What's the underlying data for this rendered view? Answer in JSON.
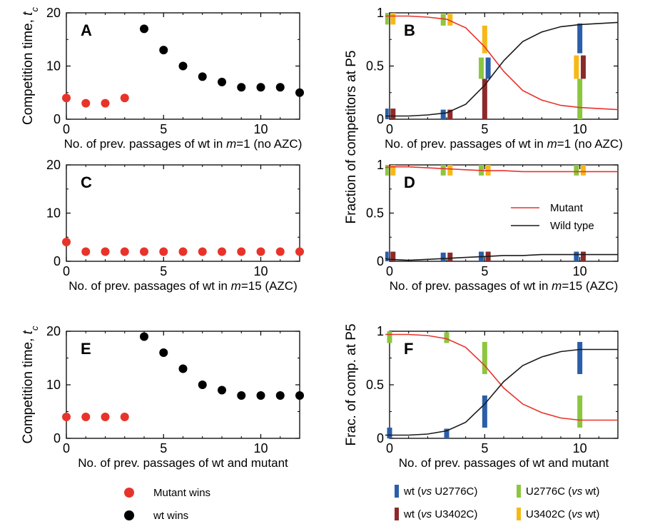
{
  "legends": {
    "mutant_wins": "Mutant  wins",
    "wt_wins": "wt wins",
    "bar_wt_vs_u2776c_pre": "wt (",
    "bar_wt_vs_u2776c_vs": "vs",
    "bar_wt_vs_u2776c_post": " U2776C)",
    "bar_wt_vs_u3402c_pre": "wt (",
    "bar_wt_vs_u3402c_vs": "vs",
    "bar_wt_vs_u3402c_post": " U3402C)",
    "bar_u2776c_vs_wt_pre": "U2776C (",
    "bar_u2776c_vs_wt_vs": "vs",
    "bar_u2776c_vs_wt_post": " wt)",
    "bar_u3402c_vs_wt_pre": "U3402C (",
    "bar_u3402c_vs_wt_vs": "vs",
    "bar_u3402c_vs_wt_post": " wt)"
  },
  "colors": {
    "mutant": "#e8332b",
    "wildtype": "#1a1a1a",
    "wt_vs_u2776c": "#2a5ea8",
    "wt_vs_u3402c": "#8c2a2a",
    "u2776c_vs_wt": "#8cc63f",
    "u3402c_vs_wt": "#f7b817"
  },
  "chart_data": [
    {
      "id": "A",
      "type": "scatter",
      "panel_label": "A",
      "xlabel_parts": [
        "No. of  prev. passages of wt in ",
        "m",
        "=1 (no AZC)"
      ],
      "ylabel_parts": [
        "Competition time, ",
        "t",
        "c"
      ],
      "xlim": [
        0,
        12
      ],
      "ylim": [
        0,
        20
      ],
      "xticks": [
        0,
        5,
        10
      ],
      "yticks": [
        0,
        10,
        20
      ],
      "series": [
        {
          "name": "Mutant  wins",
          "color": "#e8332b",
          "x": [
            0,
            1,
            2,
            3
          ],
          "y": [
            4,
            3,
            3,
            4
          ]
        },
        {
          "name": "wt wins",
          "color": "#000000",
          "x": [
            4,
            5,
            6,
            7,
            8,
            9,
            10,
            11,
            12
          ],
          "y": [
            17,
            13,
            10,
            8,
            7,
            6,
            6,
            6,
            5
          ]
        }
      ]
    },
    {
      "id": "B",
      "type": "line",
      "panel_label": "B",
      "xlabel_parts": [
        "No. of  prev. passages of wt in ",
        "m",
        "=1 (no AZC)"
      ],
      "xlim": [
        0,
        12
      ],
      "ylim": [
        0,
        1
      ],
      "xticks": [
        0,
        5,
        10
      ],
      "yticks": [
        0,
        0.5,
        1
      ],
      "ytick_labels": [
        "0",
        "0.5",
        "1"
      ],
      "series": [
        {
          "key": "mutant",
          "color": "#e8332b",
          "x": [
            -0.3,
            0,
            1,
            2,
            3,
            4,
            5,
            6,
            7,
            8,
            9,
            10,
            11,
            12
          ],
          "y": [
            0.97,
            0.97,
            0.97,
            0.96,
            0.94,
            0.86,
            0.68,
            0.45,
            0.27,
            0.18,
            0.13,
            0.11,
            0.1,
            0.09
          ]
        },
        {
          "key": "wildtype",
          "color": "#1a1a1a",
          "x": [
            -0.3,
            0,
            1,
            2,
            3,
            4,
            5,
            6,
            7,
            8,
            9,
            10,
            11,
            12
          ],
          "y": [
            0.03,
            0.03,
            0.03,
            0.04,
            0.06,
            0.14,
            0.32,
            0.55,
            0.73,
            0.82,
            0.87,
            0.89,
            0.9,
            0.91
          ]
        }
      ],
      "bars": [
        {
          "x": 0,
          "y0": 0.0,
          "y1": 0.1,
          "color": "#2a5ea8",
          "dx": -0.18
        },
        {
          "x": 0,
          "y0": 0.0,
          "y1": 0.1,
          "color": "#8c2a2a",
          "dx": 0.18
        },
        {
          "x": 0,
          "y0": 0.89,
          "y1": 1.0,
          "color": "#8cc63f",
          "dx": -0.18
        },
        {
          "x": 0,
          "y0": 0.89,
          "y1": 1.0,
          "color": "#f7b817",
          "dx": 0.18
        },
        {
          "x": 3,
          "y0": 0.0,
          "y1": 0.09,
          "color": "#2a5ea8",
          "dx": -0.18
        },
        {
          "x": 3,
          "y0": 0.0,
          "y1": 0.09,
          "color": "#8c2a2a",
          "dx": 0.18
        },
        {
          "x": 3,
          "y0": 0.88,
          "y1": 0.99,
          "color": "#8cc63f",
          "dx": -0.18
        },
        {
          "x": 3,
          "y0": 0.88,
          "y1": 0.99,
          "color": "#f7b817",
          "dx": 0.18
        },
        {
          "x": 5,
          "y0": 0.0,
          "y1": 0.38,
          "color": "#8c2a2a",
          "dx": 0.0
        },
        {
          "x": 5,
          "y0": 0.62,
          "y1": 0.88,
          "color": "#f7b817",
          "dx": 0.0
        },
        {
          "x": 5,
          "y0": 0.38,
          "y1": 0.58,
          "color": "#2a5ea8",
          "dx": 0.18
        },
        {
          "x": 5,
          "y0": 0.38,
          "y1": 0.58,
          "color": "#8cc63f",
          "dx": -0.18
        },
        {
          "x": 10,
          "y0": 0.0,
          "y1": 0.38,
          "color": "#8cc63f",
          "dx": 0.0
        },
        {
          "x": 10,
          "y0": 0.62,
          "y1": 0.9,
          "color": "#2a5ea8",
          "dx": 0.0
        },
        {
          "x": 10,
          "y0": 0.38,
          "y1": 0.6,
          "color": "#f7b817",
          "dx": -0.18
        },
        {
          "x": 10,
          "y0": 0.38,
          "y1": 0.6,
          "color": "#8c2a2a",
          "dx": 0.18
        }
      ]
    },
    {
      "id": "C",
      "type": "scatter",
      "panel_label": "C",
      "xlabel_parts": [
        "No. of prev. passages of wt in ",
        "m",
        "=15 (AZC)"
      ],
      "xlim": [
        0,
        12
      ],
      "ylim": [
        0,
        20
      ],
      "xticks": [
        0,
        5,
        10
      ],
      "yticks": [
        0,
        10,
        20
      ],
      "series": [
        {
          "name": "Mutant  wins",
          "color": "#e8332b",
          "x": [
            0,
            1,
            2,
            3,
            4,
            5,
            6,
            7,
            8,
            9,
            10,
            11,
            12
          ],
          "y": [
            4,
            2,
            2,
            2,
            2,
            2,
            2,
            2,
            2,
            2,
            2,
            2,
            2
          ]
        }
      ]
    },
    {
      "id": "D",
      "type": "line",
      "panel_label": "D",
      "xlabel_parts": [
        "No. of prev. passages of wt in ",
        "m",
        "=15 (AZC)"
      ],
      "xlim": [
        0,
        12
      ],
      "ylim": [
        0,
        1
      ],
      "xticks": [
        0,
        5,
        10
      ],
      "yticks": [
        0,
        0.5,
        1
      ],
      "ytick_labels": [
        "0",
        "0.5",
        "1"
      ],
      "legend": {
        "mutant": "Mutant",
        "wildtype": "Wild type"
      },
      "series": [
        {
          "key": "mutant",
          "color": "#e8332b",
          "x": [
            -0.3,
            0,
            1,
            2,
            3,
            4,
            5,
            6,
            7,
            8,
            9,
            10,
            11,
            12
          ],
          "y": [
            0.97,
            0.98,
            0.98,
            0.97,
            0.96,
            0.95,
            0.94,
            0.94,
            0.93,
            0.93,
            0.93,
            0.93,
            0.93,
            0.93
          ]
        },
        {
          "key": "wildtype",
          "color": "#1a1a1a",
          "x": [
            -0.3,
            0,
            1,
            2,
            3,
            4,
            5,
            6,
            7,
            8,
            9,
            10,
            11,
            12
          ],
          "y": [
            0.03,
            0.02,
            0.01,
            0.02,
            0.03,
            0.04,
            0.05,
            0.06,
            0.06,
            0.07,
            0.07,
            0.07,
            0.07,
            0.07
          ]
        }
      ],
      "bars": [
        {
          "x": 0,
          "y0": 0.0,
          "y1": 0.1,
          "color": "#2a5ea8",
          "dx": -0.18
        },
        {
          "x": 0,
          "y0": 0.0,
          "y1": 0.1,
          "color": "#8c2a2a",
          "dx": 0.18
        },
        {
          "x": 0,
          "y0": 0.89,
          "y1": 1.0,
          "color": "#8cc63f",
          "dx": -0.18
        },
        {
          "x": 0,
          "y0": 0.89,
          "y1": 1.0,
          "color": "#f7b817",
          "dx": 0.18
        },
        {
          "x": 3,
          "y0": 0.0,
          "y1": 0.09,
          "color": "#2a5ea8",
          "dx": -0.18
        },
        {
          "x": 3,
          "y0": 0.0,
          "y1": 0.09,
          "color": "#8c2a2a",
          "dx": 0.18
        },
        {
          "x": 3,
          "y0": 0.89,
          "y1": 1.0,
          "color": "#8cc63f",
          "dx": -0.18
        },
        {
          "x": 3,
          "y0": 0.89,
          "y1": 1.0,
          "color": "#f7b817",
          "dx": 0.18
        },
        {
          "x": 5,
          "y0": 0.0,
          "y1": 0.1,
          "color": "#2a5ea8",
          "dx": -0.18
        },
        {
          "x": 5,
          "y0": 0.0,
          "y1": 0.1,
          "color": "#8c2a2a",
          "dx": 0.18
        },
        {
          "x": 5,
          "y0": 0.89,
          "y1": 1.0,
          "color": "#8cc63f",
          "dx": -0.18
        },
        {
          "x": 5,
          "y0": 0.89,
          "y1": 1.0,
          "color": "#f7b817",
          "dx": 0.18
        },
        {
          "x": 10,
          "y0": 0.0,
          "y1": 0.1,
          "color": "#2a5ea8",
          "dx": -0.18
        },
        {
          "x": 10,
          "y0": 0.0,
          "y1": 0.1,
          "color": "#8c2a2a",
          "dx": 0.18
        },
        {
          "x": 10,
          "y0": 0.89,
          "y1": 1.0,
          "color": "#8cc63f",
          "dx": -0.18
        },
        {
          "x": 10,
          "y0": 0.89,
          "y1": 1.0,
          "color": "#f7b817",
          "dx": 0.18
        }
      ]
    },
    {
      "id": "E",
      "type": "scatter",
      "panel_label": "E",
      "xlabel_parts": [
        "No. of prev. passages of wt and mutant"
      ],
      "ylabel_parts": [
        "Competition time, ",
        "t",
        "c"
      ],
      "xlim": [
        0,
        12
      ],
      "ylim": [
        0,
        20
      ],
      "xticks": [
        0,
        5,
        10
      ],
      "yticks": [
        0,
        10,
        20
      ],
      "series": [
        {
          "name": "Mutant  wins",
          "color": "#e8332b",
          "x": [
            0,
            1,
            2,
            3
          ],
          "y": [
            4,
            4,
            4,
            4
          ]
        },
        {
          "name": "wt wins",
          "color": "#000000",
          "x": [
            4,
            5,
            6,
            7,
            8,
            9,
            10,
            11,
            12
          ],
          "y": [
            19,
            16,
            13,
            10,
            9,
            8,
            8,
            8,
            8
          ]
        }
      ]
    },
    {
      "id": "F",
      "type": "line",
      "panel_label": "F",
      "xlabel_parts": [
        "No. of prev. passages of wt and mutant"
      ],
      "ylabel_parts": [
        "Frac. of comp. at P5"
      ],
      "xlim": [
        0,
        12
      ],
      "ylim": [
        0,
        1
      ],
      "xticks": [
        0,
        5,
        10
      ],
      "yticks": [
        0,
        0.5,
        1
      ],
      "ytick_labels": [
        "0",
        "0.5",
        "1"
      ],
      "series": [
        {
          "key": "mutant",
          "color": "#e8332b",
          "x": [
            -0.3,
            0,
            1,
            2,
            3,
            4,
            5,
            6,
            7,
            8,
            9,
            10,
            11,
            12
          ],
          "y": [
            0.97,
            0.97,
            0.97,
            0.96,
            0.93,
            0.85,
            0.68,
            0.47,
            0.32,
            0.24,
            0.19,
            0.17,
            0.17,
            0.17
          ]
        },
        {
          "key": "wildtype",
          "color": "#1a1a1a",
          "x": [
            -0.3,
            0,
            1,
            2,
            3,
            4,
            5,
            6,
            7,
            8,
            9,
            10,
            11,
            12
          ],
          "y": [
            0.03,
            0.03,
            0.03,
            0.04,
            0.07,
            0.15,
            0.32,
            0.53,
            0.68,
            0.76,
            0.81,
            0.83,
            0.83,
            0.83
          ]
        }
      ],
      "bars": [
        {
          "x": 0,
          "y0": 0.0,
          "y1": 0.1,
          "color": "#2a5ea8",
          "dx": 0.0
        },
        {
          "x": 0,
          "y0": 0.89,
          "y1": 1.0,
          "color": "#8cc63f",
          "dx": 0.0
        },
        {
          "x": 3,
          "y0": 0.0,
          "y1": 0.09,
          "color": "#2a5ea8",
          "dx": 0.0
        },
        {
          "x": 3,
          "y0": 0.89,
          "y1": 0.99,
          "color": "#8cc63f",
          "dx": 0.0
        },
        {
          "x": 5,
          "y0": 0.1,
          "y1": 0.4,
          "color": "#2a5ea8",
          "dx": 0.0
        },
        {
          "x": 5,
          "y0": 0.6,
          "y1": 0.9,
          "color": "#8cc63f",
          "dx": 0.0
        },
        {
          "x": 10,
          "y0": 0.1,
          "y1": 0.4,
          "color": "#8cc63f",
          "dx": 0.0
        },
        {
          "x": 10,
          "y0": 0.6,
          "y1": 0.9,
          "color": "#2a5ea8",
          "dx": 0.0
        }
      ]
    }
  ],
  "shared_ylabel_BD": "Fraction of competitors at P5"
}
